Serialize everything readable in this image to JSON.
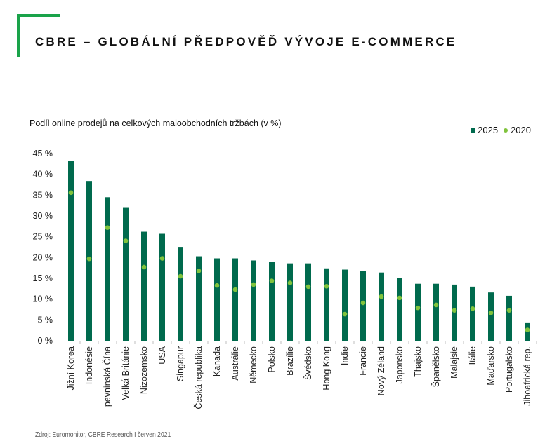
{
  "header": {
    "title": "CBRE – GLOBÁLNÍ PŘEDPOVĚĎ VÝVOJE E-COMMERCE"
  },
  "source": "Zdroj: Euromonitor, CBRE Research I červen 2021",
  "colors": {
    "accent": "#1aa34a",
    "bar": "#006a4d",
    "dot": "#80c33d"
  },
  "chart_data": {
    "type": "bar",
    "subtitle": "Podíl online prodejů na celkových maloobchodních tržbách (v %)",
    "legend_position": "top-right",
    "ylim": [
      0,
      45
    ],
    "yticks": [
      "0 %",
      "5 %",
      "10 %",
      "15 %",
      "20 %",
      "25 %",
      "30 %",
      "35 %",
      "40 %",
      "45 %"
    ],
    "grid": false,
    "categories": [
      "Jižní Korea",
      "Indonésie",
      "pevninská Čína",
      "Velká Británie",
      "Nizozemsko",
      "USA",
      "Singapur",
      "Česká republika",
      "Kanada",
      "Austrálie",
      "Německo",
      "Polsko",
      "Brazílie",
      "Švédsko",
      "Hong Kong",
      "Indie",
      "Francie",
      "Nový Zéland",
      "Japonsko",
      "Thajsko",
      "Španělsko",
      "Malajsie",
      "Itálie",
      "Maďarsko",
      "Portugalsko",
      "Jihoafrická rep."
    ],
    "series": [
      {
        "name": "2025",
        "type": "bar",
        "values": [
          43.3,
          38.4,
          34.5,
          32.1,
          26.2,
          25.7,
          22.4,
          20.3,
          19.8,
          19.8,
          19.3,
          18.9,
          18.6,
          18.6,
          17.4,
          17.1,
          16.7,
          16.4,
          15.0,
          13.7,
          13.7,
          13.5,
          13.0,
          11.6,
          10.8,
          4.4
        ]
      },
      {
        "name": "2020",
        "type": "point",
        "values": [
          35.6,
          19.7,
          27.2,
          24.0,
          17.7,
          19.8,
          15.5,
          16.8,
          13.3,
          12.3,
          13.5,
          14.4,
          13.9,
          13.0,
          13.1,
          6.4,
          9.1,
          10.6,
          10.3,
          7.9,
          8.6,
          7.3,
          7.7,
          6.7,
          7.3,
          2.6
        ]
      }
    ]
  }
}
